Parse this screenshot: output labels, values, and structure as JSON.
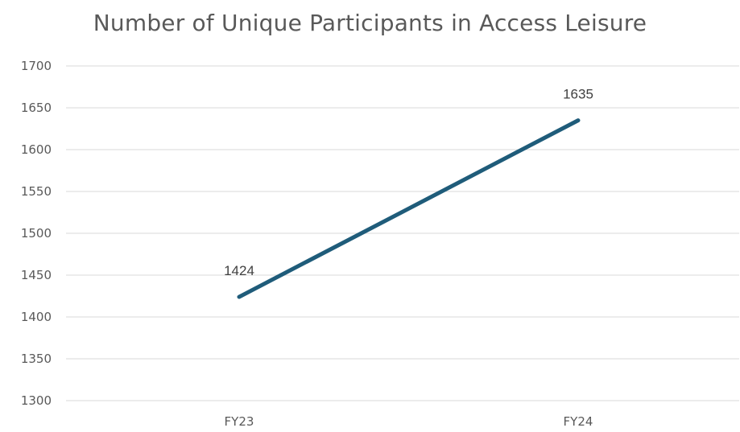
{
  "chart_data": {
    "type": "line",
    "title": "Number of Unique Participants in Access Leisure",
    "categories": [
      "FY23",
      "FY24"
    ],
    "series": [
      {
        "values": [
          1424,
          1635
        ],
        "color": "#1f5c7a"
      }
    ],
    "ylim": [
      1300,
      1700
    ],
    "yticks": [
      1300,
      1350,
      1400,
      1450,
      1500,
      1550,
      1600,
      1650,
      1700
    ],
    "xlabel": "",
    "ylabel": "",
    "grid": "horizontal",
    "legend": "none",
    "data_labels": true
  }
}
